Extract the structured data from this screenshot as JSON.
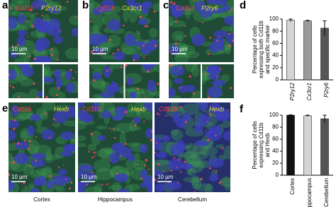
{
  "panels": [
    {
      "label": "a",
      "marker_1": "Cd11b",
      "marker_2": "P2ry12"
    },
    {
      "label": "b",
      "marker_1": "Cd11b",
      "marker_2": "Cx3cr1"
    },
    {
      "label": "c",
      "marker_1": "Cd11b",
      "marker_2": "P2ry6"
    },
    {
      "label": "e",
      "marker_1": "Cd11b",
      "marker_2": "Hexb",
      "regions": [
        "Cortex",
        "Hippocampus",
        "Cerebellum"
      ]
    }
  ],
  "scale_bar": "10 µm",
  "chart_data": [
    {
      "type": "bar",
      "panel_label": "d",
      "ylabel": [
        "Percentage of cells",
        "expressing both Cd11b",
        "and specific marker"
      ],
      "categories": [
        "P2ry12",
        "Cx3cr1",
        "P2ry6"
      ],
      "values": [
        98,
        97,
        85
      ],
      "errors": [
        2,
        1,
        12
      ],
      "colors": [
        "#d4d4d4",
        "#9a9a9a",
        "#555555"
      ],
      "ylim": [
        0,
        100
      ],
      "yticks": [
        0,
        20,
        40,
        60,
        80,
        100
      ]
    },
    {
      "type": "bar",
      "panel_label": "f",
      "ylabel": [
        "Percentage of cells",
        "expressing Cd11b",
        "and Hexb"
      ],
      "categories": [
        "Cortex",
        "Hippocampus",
        "Cerebellum"
      ],
      "values": [
        100,
        99,
        94
      ],
      "errors": [
        0.5,
        1,
        6
      ],
      "colors": [
        "#111111",
        "#d4d4d4",
        "#555555"
      ],
      "ylim": [
        0,
        100
      ],
      "yticks": [
        0,
        20,
        40,
        60,
        80,
        100
      ]
    }
  ]
}
